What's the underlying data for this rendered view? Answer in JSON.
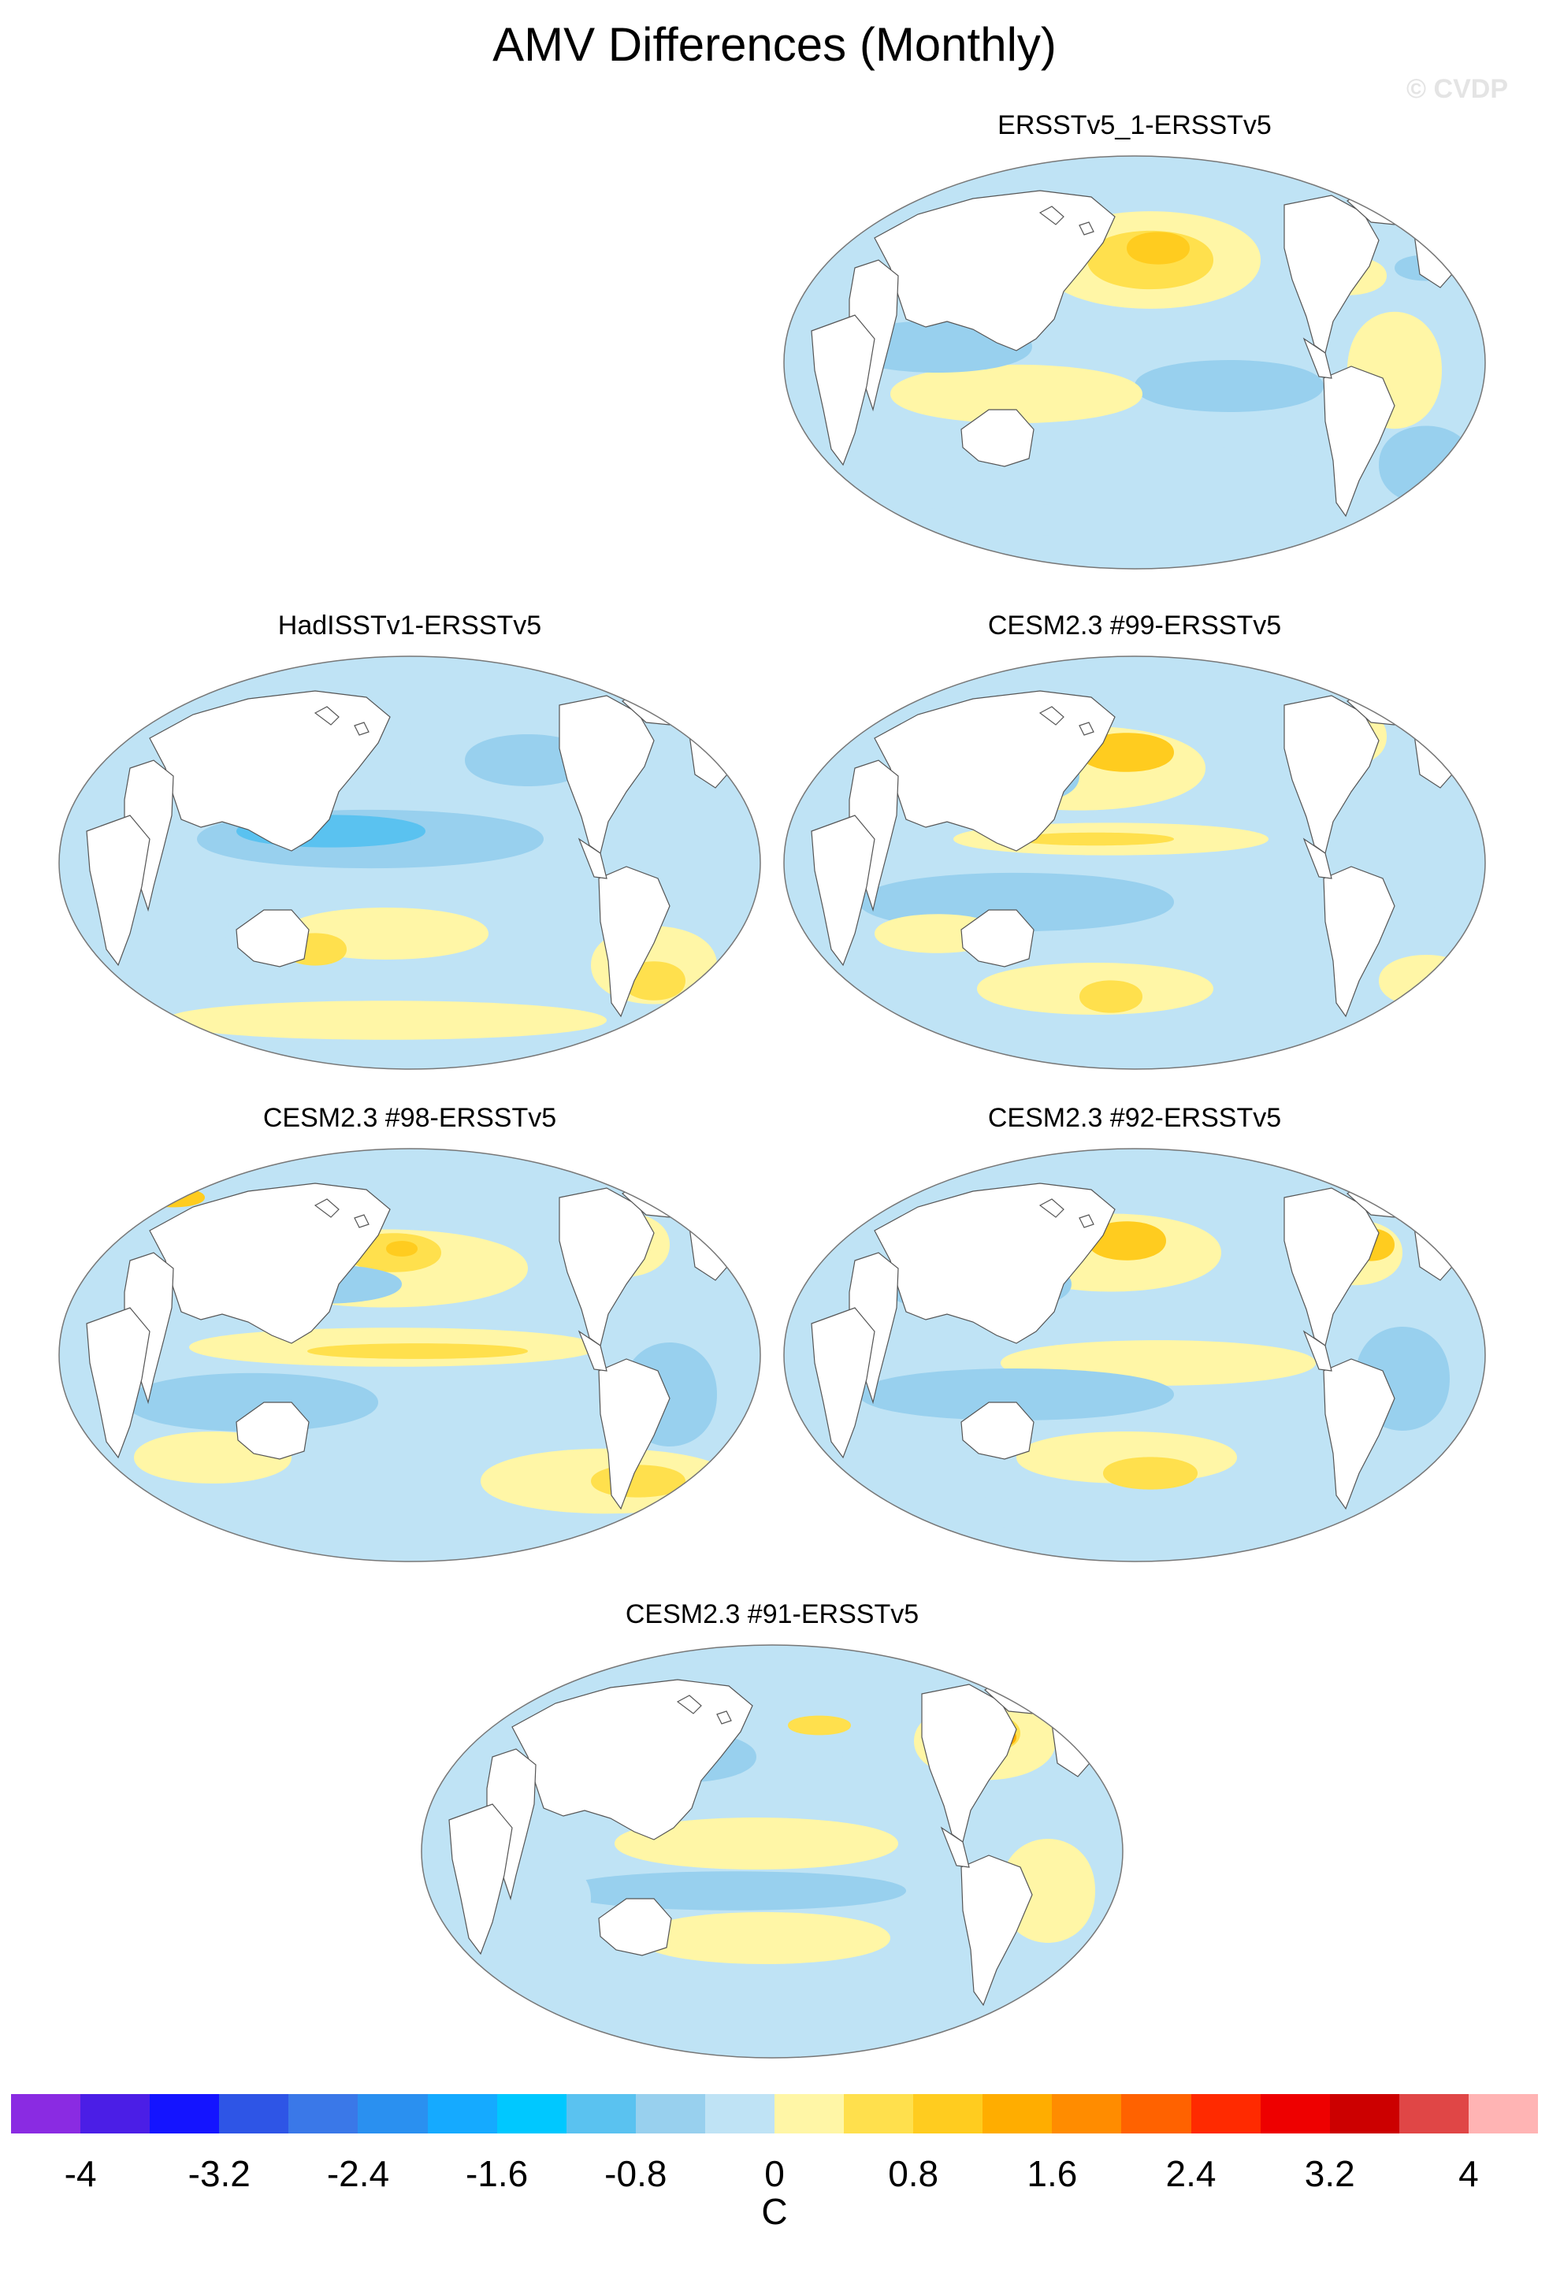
{
  "title": "AMV Differences (Monthly)",
  "watermark": "© CVDP",
  "units": "C",
  "colorbar": {
    "labels": [
      "-4",
      "-3.2",
      "-2.4",
      "-1.6",
      "-0.8",
      "0",
      "0.8",
      "1.6",
      "2.4",
      "3.2",
      "4"
    ],
    "colors": [
      "#8a2be2",
      "#4b1ee6",
      "#1414ff",
      "#2e55e6",
      "#3a78e8",
      "#2a90f0",
      "#15aaff",
      "#00c8ff",
      "#5ac2f0",
      "#98d0ee",
      "#bfe3f5",
      "#fff6a6",
      "#ffe04d",
      "#ffcc1f",
      "#ffad00",
      "#ff8c00",
      "#ff6200",
      "#ff2a00",
      "#ee0000",
      "#cc0000",
      "#e04646",
      "#ffb4b4"
    ]
  },
  "panels": [
    {
      "id": "ersstv5-1",
      "label": "ERSSTv5_1-ERSSTv5"
    },
    {
      "id": "hadisstv1",
      "label": "HadISSTv1-ERSSTv5"
    },
    {
      "id": "cesm99",
      "label": "CESM2.3 #99-ERSSTv5"
    },
    {
      "id": "cesm98",
      "label": "CESM2.3 #98-ERSSTv5"
    },
    {
      "id": "cesm92",
      "label": "CESM2.3 #92-ERSSTv5"
    },
    {
      "id": "cesm91",
      "label": "CESM2.3 #91-ERSSTv5"
    }
  ]
}
